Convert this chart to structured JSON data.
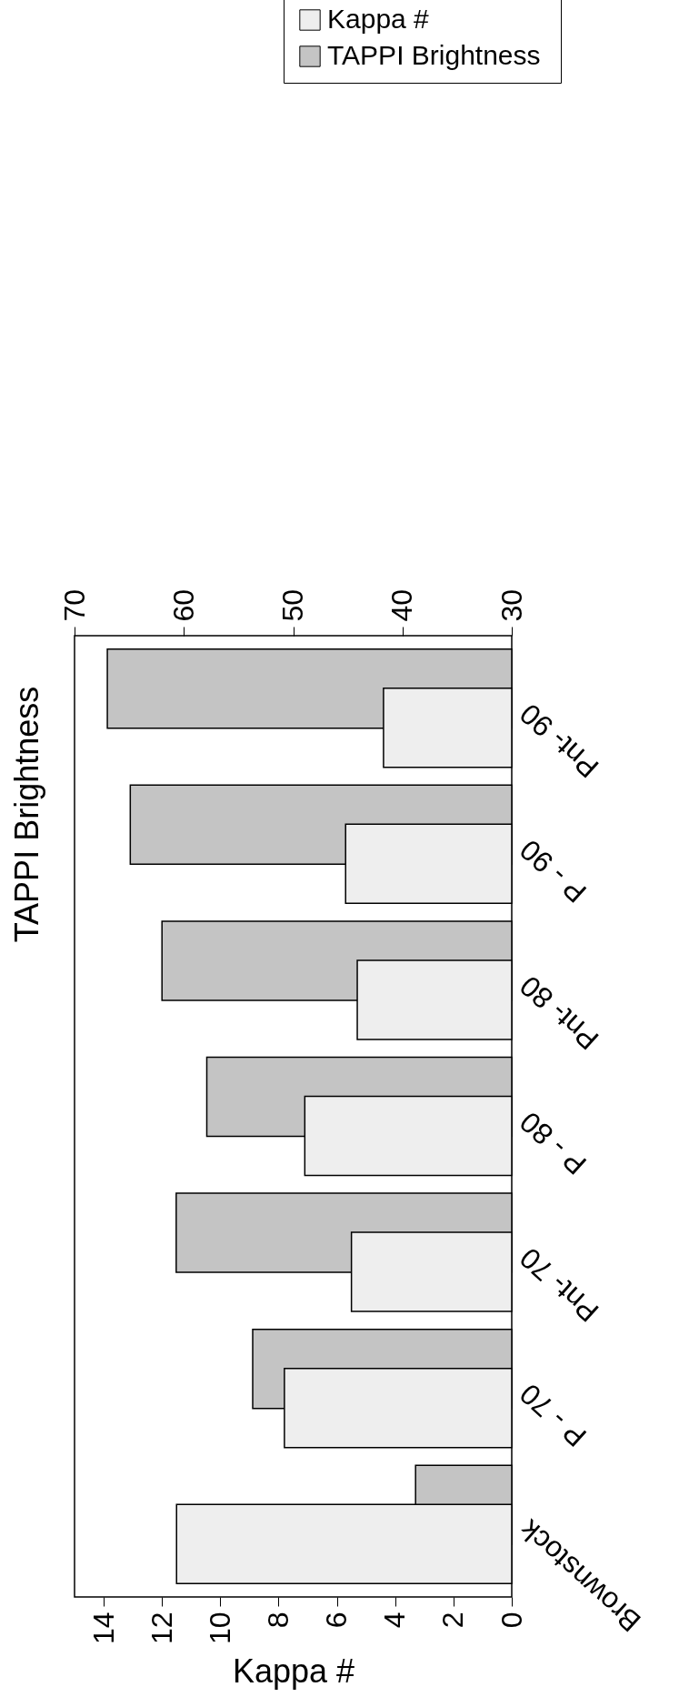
{
  "chart_data": {
    "type": "bar",
    "orientation": "horizontal",
    "categories": [
      "Pnt- 90",
      "P - 90",
      "Pnt- 80",
      "P - 80",
      "Pnt- 70",
      "P - 70",
      "Brownstock"
    ],
    "series": [
      {
        "name": "Kappa  #",
        "color": "#eeeeee",
        "values": [
          4.4,
          5.7,
          5.3,
          7.1,
          5.5,
          7.8,
          11.5
        ]
      },
      {
        "name": "TAPPI  Brightness",
        "color": "#c4c4c4",
        "axis": "x2",
        "values": [
          67.0,
          64.9,
          62.0,
          57.9,
          60.7,
          53.7,
          38.8
        ]
      }
    ],
    "xlabel": "Kappa  #",
    "x2label": "TAPPI  Brightness",
    "xlim": [
      15,
      0
    ],
    "xticks": [
      0,
      2,
      4,
      6,
      8,
      10,
      12,
      14
    ],
    "x2lim": [
      70,
      30
    ],
    "x2ticks": [
      30,
      40,
      50,
      60,
      70
    ],
    "grid": false,
    "legend": "top right"
  }
}
